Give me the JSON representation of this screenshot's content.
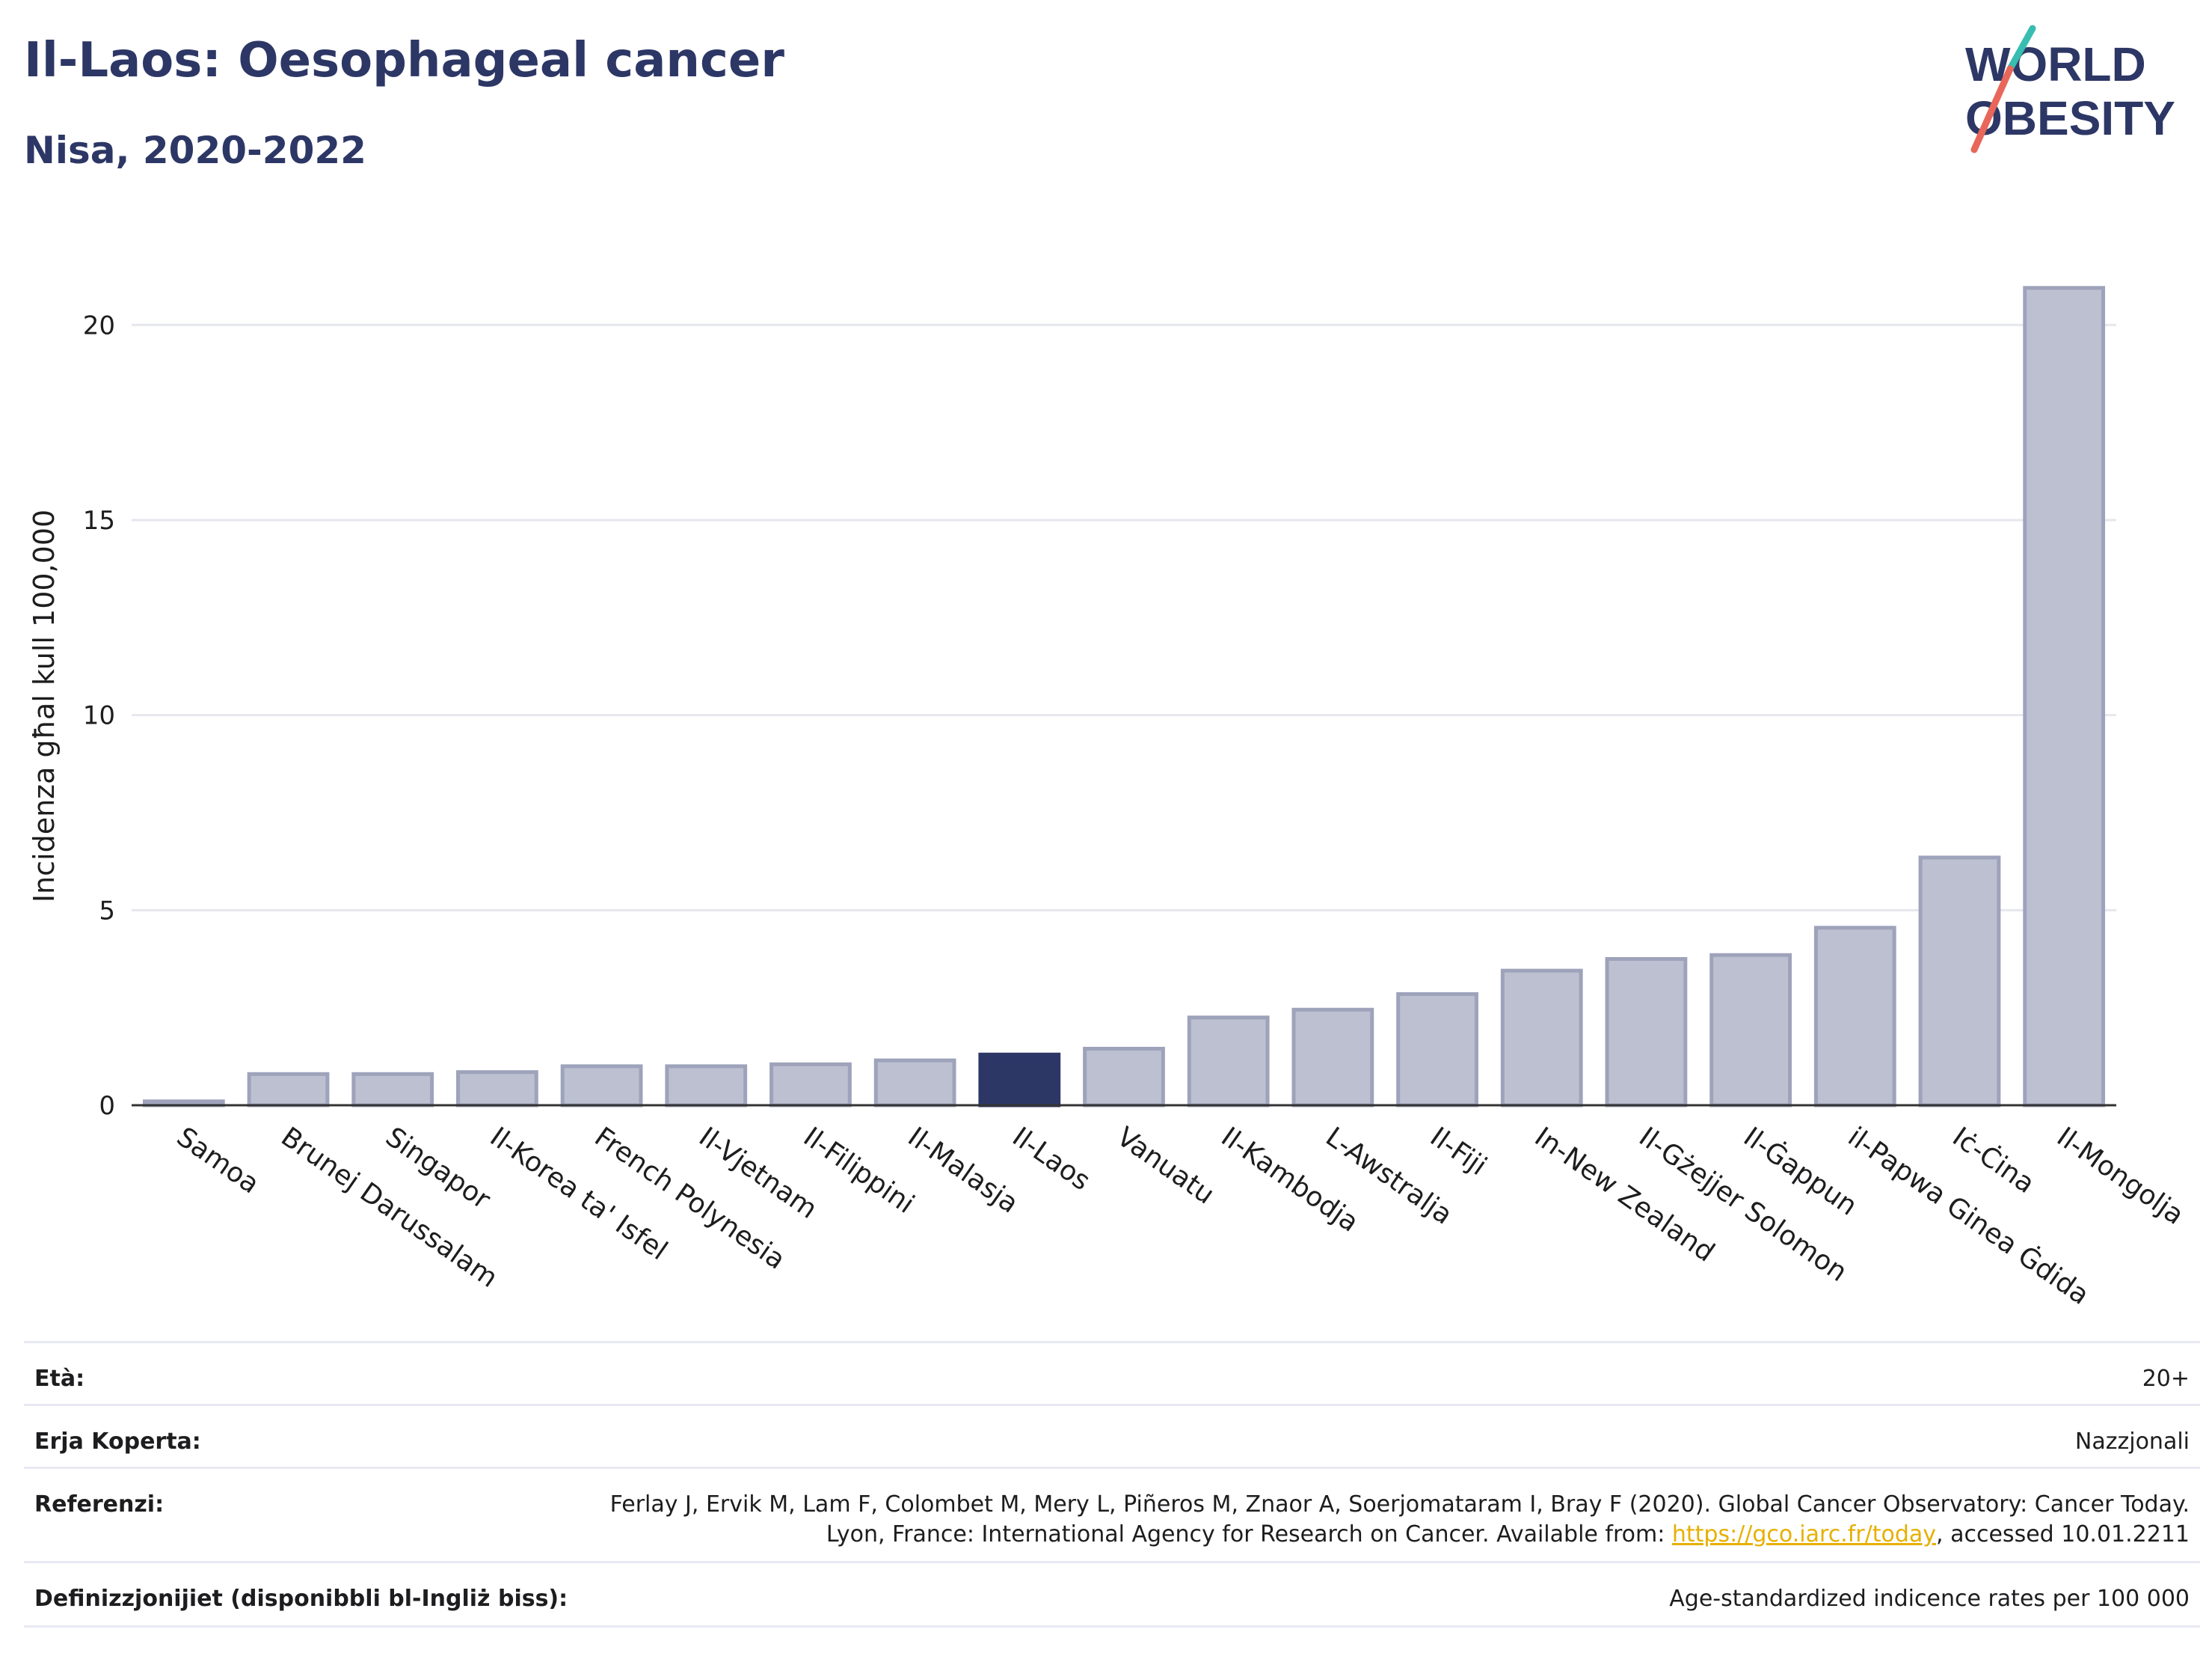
{
  "header": {
    "title": "Il-Laos: Oesophageal cancer",
    "subtitle": "Nisa, 2020-2022"
  },
  "logo": {
    "line1": "WORLD",
    "line2": "OBESITY"
  },
  "colors": {
    "bar": "#bcc0d0",
    "bar_stroke": "#9ea3bb",
    "highlight": "#2d3766",
    "grid": "#e6e7ee",
    "title": "#2d3766",
    "logo_slash_red": "#e8675a",
    "logo_slash_teal": "#38bdb1"
  },
  "chart_data": {
    "type": "bar",
    "ylabel": "Incidenza għal kull 100,000",
    "ylim": [
      0,
      22
    ],
    "yticks": [
      0,
      5,
      10,
      15,
      20
    ],
    "grid": true,
    "highlight": "Il-Laos",
    "categories": [
      "Samoa",
      "Brunej Darussalam",
      "Singapor",
      "Il-Korea ta' Isfel",
      "French Polynesia",
      "Il-Vjetnam",
      "Il-Filippini",
      "Il-Malasja",
      "Il-Laos",
      "Vanuatu",
      "Il-Kambodja",
      "L-Awstralja",
      "Il-Fiji",
      "In-New Zealand",
      "Il-Gżejjer Solomon",
      "Il-Ġappun",
      "il-Papwa Ginea Ġdida",
      "Iċ-Ċina",
      "Il-Mongolja"
    ],
    "values": [
      0.1,
      0.8,
      0.8,
      0.85,
      1.0,
      1.0,
      1.05,
      1.15,
      1.3,
      1.45,
      2.25,
      2.45,
      2.85,
      3.45,
      3.75,
      3.85,
      4.55,
      6.35,
      20.95
    ]
  },
  "meta": [
    {
      "label": "Età:",
      "value": "20+"
    },
    {
      "label": "Erja Koperta:",
      "value": "Nazzjonali"
    },
    {
      "label": "Referenzi:",
      "value_pre": "Ferlay J, Ervik M, Lam F, Colombet M, Mery L, Piñeros M, Znaor A, Soerjomataram I, Bray F (2020). Global Cancer Observatory: Cancer Today. Lyon, France: International Agency for Research on Cancer. Available from: ",
      "link": "https://gco.iarc.fr/today",
      "value_post": ", accessed 10.01.2211"
    },
    {
      "label": "Definizzjonijiet (disponibbli bl-Ingliż biss):",
      "value": "Age-standardized indicence rates per 100 000"
    }
  ]
}
